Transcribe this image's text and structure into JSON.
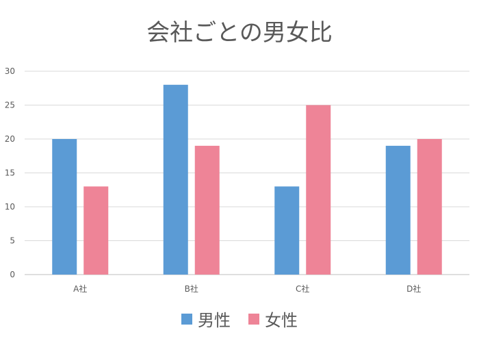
{
  "chart_data": {
    "type": "bar",
    "title": "会社ごとの男女比",
    "categories": [
      "A社",
      "B社",
      "C社",
      "D社"
    ],
    "series": [
      {
        "name": "男性",
        "values": [
          20,
          28,
          13,
          19
        ],
        "color": "#5b9bd5"
      },
      {
        "name": "女性",
        "values": [
          13,
          19,
          25,
          20
        ],
        "color": "#ee8497"
      }
    ],
    "y_ticks": [
      "0",
      "5",
      "10",
      "15",
      "20",
      "25",
      "30"
    ],
    "ylim": [
      0,
      30
    ],
    "grid": true,
    "legend_position": "bottom",
    "gridline_color": "#d9d9d9",
    "axis_line_color": "#bfbfbf"
  }
}
